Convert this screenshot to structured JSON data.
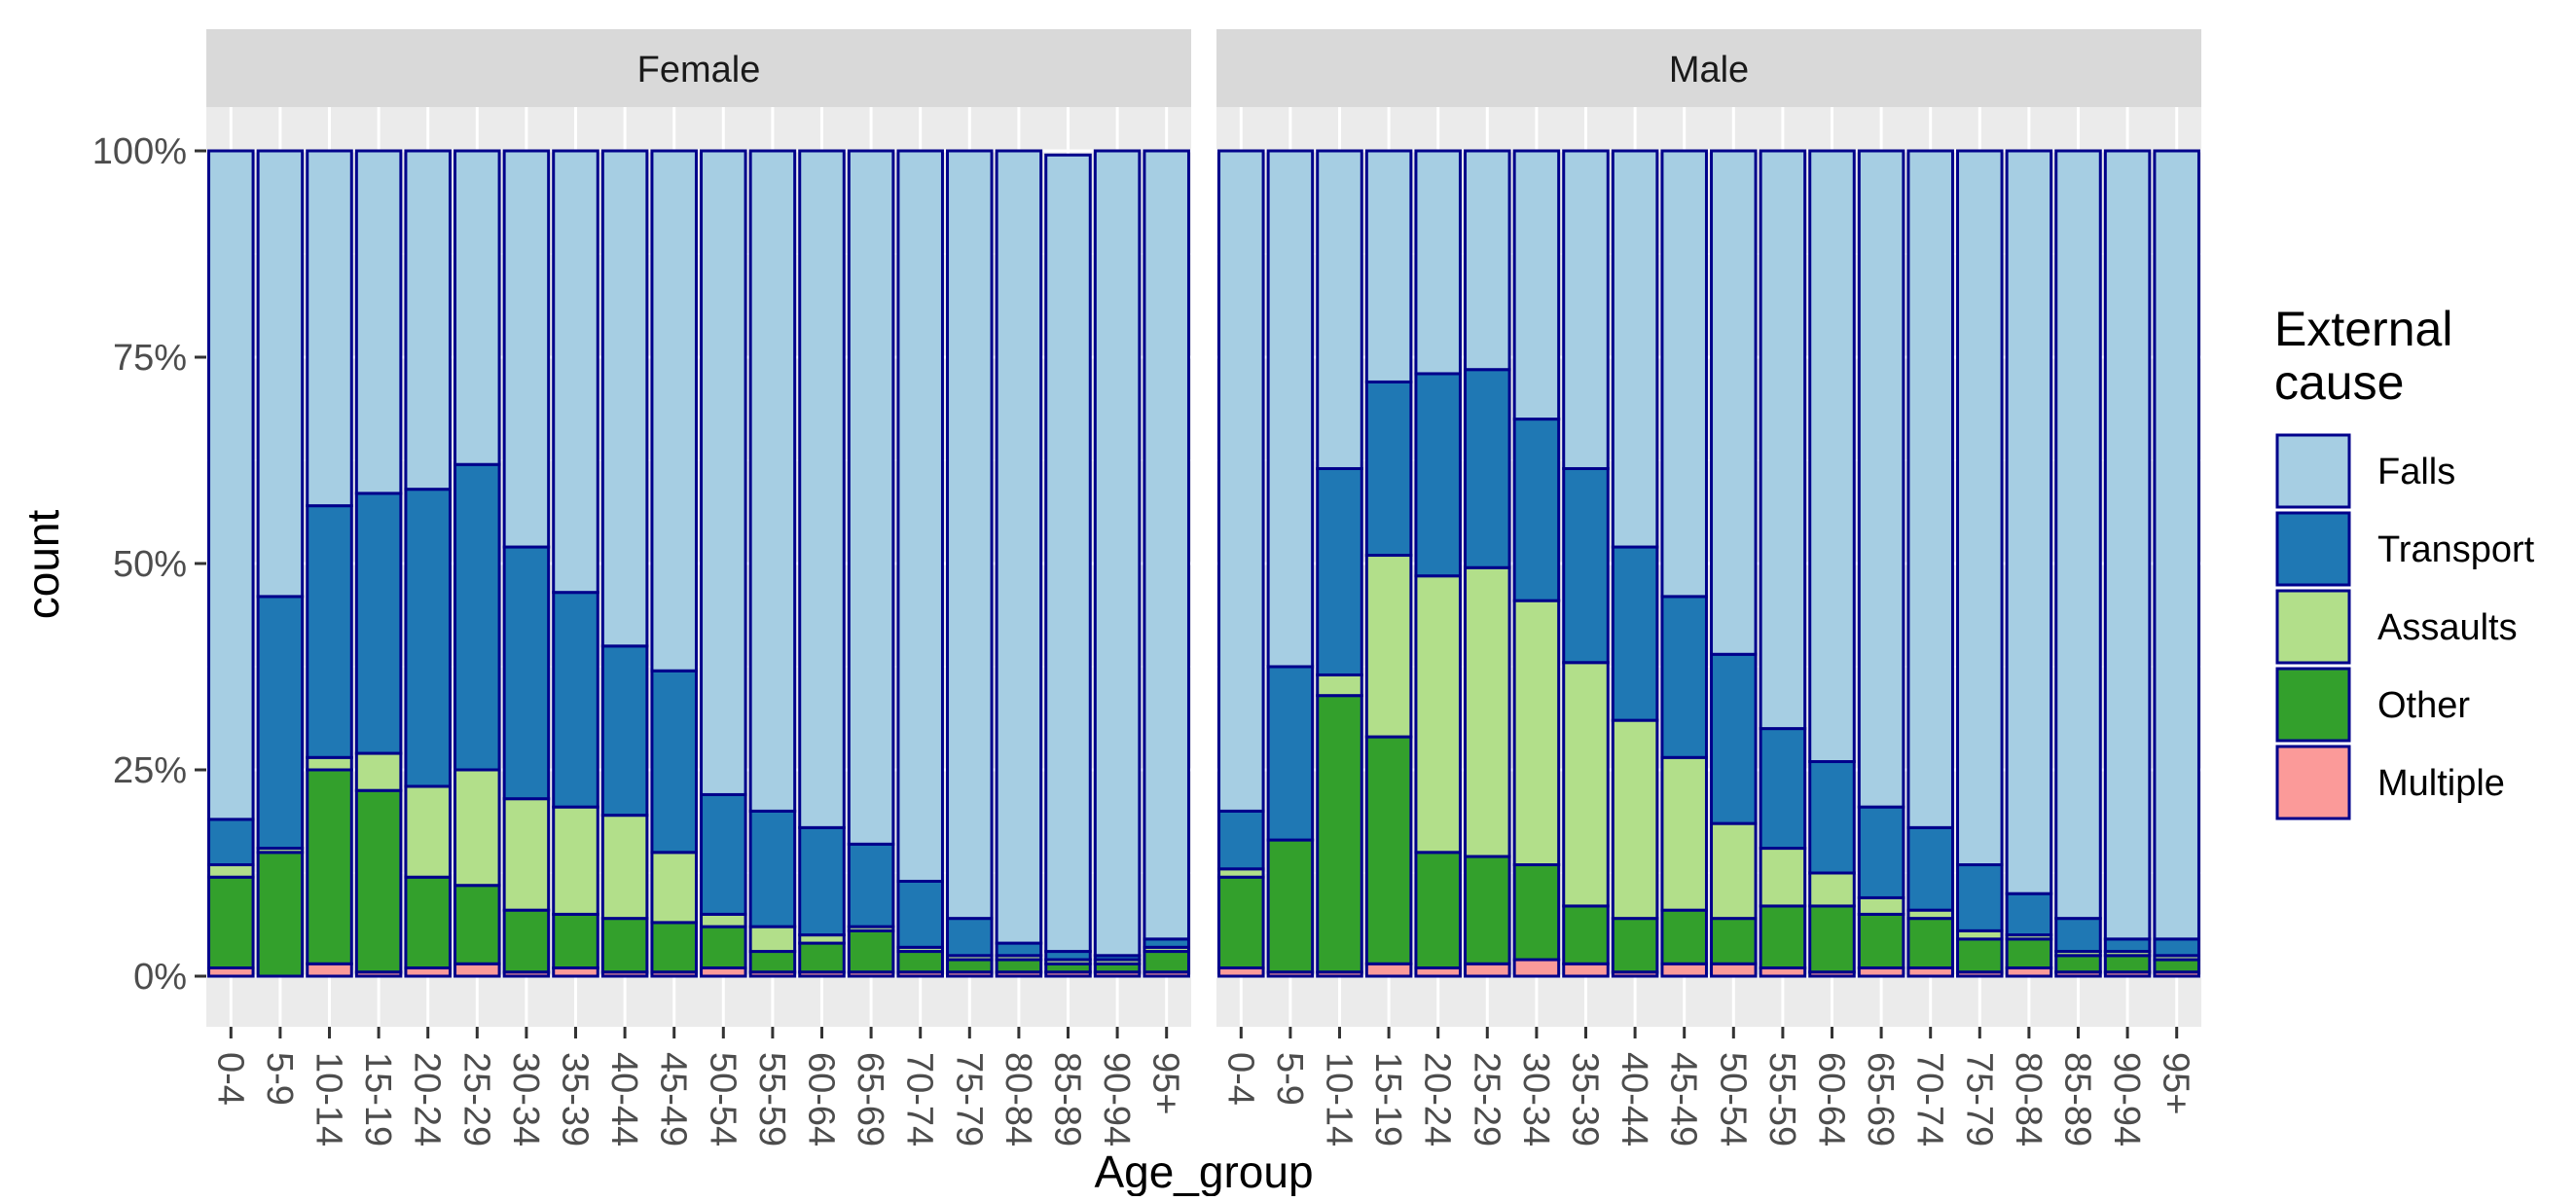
{
  "chart_data": {
    "type": "bar",
    "stacked": "fill",
    "title": "",
    "xlabel": "Age_group",
    "ylabel": "count",
    "ylim": [
      0,
      1
    ],
    "y_ticks": [
      "0%",
      "25%",
      "50%",
      "75%",
      "100%"
    ],
    "grid": true,
    "legend": {
      "title_lines": [
        "External",
        "cause"
      ],
      "position": "right",
      "items": [
        {
          "name": "Falls",
          "color": "#A6CEE3"
        },
        {
          "name": "Transport",
          "color": "#1F78B4"
        },
        {
          "name": "Assaults",
          "color": "#B2DF8A"
        },
        {
          "name": "Other",
          "color": "#33A02C"
        },
        {
          "name": "Multiple",
          "color": "#FB9A99"
        }
      ]
    },
    "bar_outline_color": "#00008B",
    "categories": [
      "0-4",
      "5-9",
      "10-14",
      "15-19",
      "20-24",
      "25-29",
      "30-34",
      "35-39",
      "40-44",
      "45-49",
      "50-54",
      "55-59",
      "60-64",
      "65-69",
      "70-74",
      "75-79",
      "80-84",
      "85-89",
      "90-94",
      "95+"
    ],
    "stack_order_bottom_to_top": [
      "Multiple",
      "Other",
      "Assaults",
      "Transport",
      "Falls"
    ],
    "facets": [
      {
        "label": "Female",
        "series": [
          {
            "name": "Multiple",
            "values": [
              0.01,
              0.0,
              0.015,
              0.005,
              0.01,
              0.015,
              0.005,
              0.01,
              0.005,
              0.005,
              0.01,
              0.005,
              0.005,
              0.005,
              0.005,
              0.005,
              0.005,
              0.005,
              0.005,
              0.005
            ]
          },
          {
            "name": "Other",
            "values": [
              0.11,
              0.15,
              0.235,
              0.22,
              0.11,
              0.095,
              0.075,
              0.065,
              0.065,
              0.06,
              0.05,
              0.025,
              0.035,
              0.05,
              0.025,
              0.015,
              0.015,
              0.01,
              0.01,
              0.025
            ]
          },
          {
            "name": "Assaults",
            "values": [
              0.015,
              0.005,
              0.015,
              0.045,
              0.11,
              0.14,
              0.135,
              0.13,
              0.125,
              0.085,
              0.015,
              0.03,
              0.01,
              0.005,
              0.005,
              0.005,
              0.005,
              0.005,
              0.005,
              0.005
            ]
          },
          {
            "name": "Transport",
            "values": [
              0.055,
              0.305,
              0.305,
              0.315,
              0.36,
              0.37,
              0.305,
              0.26,
              0.205,
              0.22,
              0.145,
              0.14,
              0.13,
              0.1,
              0.08,
              0.045,
              0.015,
              0.01,
              0.005,
              0.01
            ]
          },
          {
            "name": "Falls",
            "values": [
              0.81,
              0.54,
              0.43,
              0.415,
              0.41,
              0.38,
              0.48,
              0.535,
              0.6,
              0.63,
              0.78,
              0.8,
              0.82,
              0.84,
              0.885,
              0.93,
              0.96,
              0.965,
              0.975,
              0.955
            ]
          }
        ]
      },
      {
        "label": "Male",
        "series": [
          {
            "name": "Multiple",
            "values": [
              0.01,
              0.005,
              0.005,
              0.015,
              0.01,
              0.015,
              0.02,
              0.015,
              0.005,
              0.015,
              0.015,
              0.01,
              0.005,
              0.01,
              0.01,
              0.005,
              0.01,
              0.005,
              0.005,
              0.005
            ]
          },
          {
            "name": "Other",
            "values": [
              0.11,
              0.16,
              0.335,
              0.275,
              0.14,
              0.13,
              0.115,
              0.07,
              0.065,
              0.065,
              0.055,
              0.075,
              0.08,
              0.065,
              0.06,
              0.04,
              0.035,
              0.02,
              0.02,
              0.015
            ]
          },
          {
            "name": "Assaults",
            "values": [
              0.01,
              0.0,
              0.025,
              0.22,
              0.335,
              0.35,
              0.32,
              0.295,
              0.24,
              0.185,
              0.115,
              0.07,
              0.04,
              0.02,
              0.01,
              0.01,
              0.005,
              0.005,
              0.005,
              0.005
            ]
          },
          {
            "name": "Transport",
            "values": [
              0.07,
              0.21,
              0.25,
              0.21,
              0.245,
              0.24,
              0.22,
              0.235,
              0.21,
              0.195,
              0.205,
              0.145,
              0.135,
              0.11,
              0.1,
              0.08,
              0.05,
              0.04,
              0.015,
              0.02
            ]
          },
          {
            "name": "Falls",
            "values": [
              0.8,
              0.625,
              0.385,
              0.28,
              0.27,
              0.265,
              0.325,
              0.385,
              0.48,
              0.54,
              0.61,
              0.7,
              0.74,
              0.795,
              0.82,
              0.865,
              0.9,
              0.93,
              0.955,
              0.955
            ]
          }
        ]
      }
    ]
  }
}
